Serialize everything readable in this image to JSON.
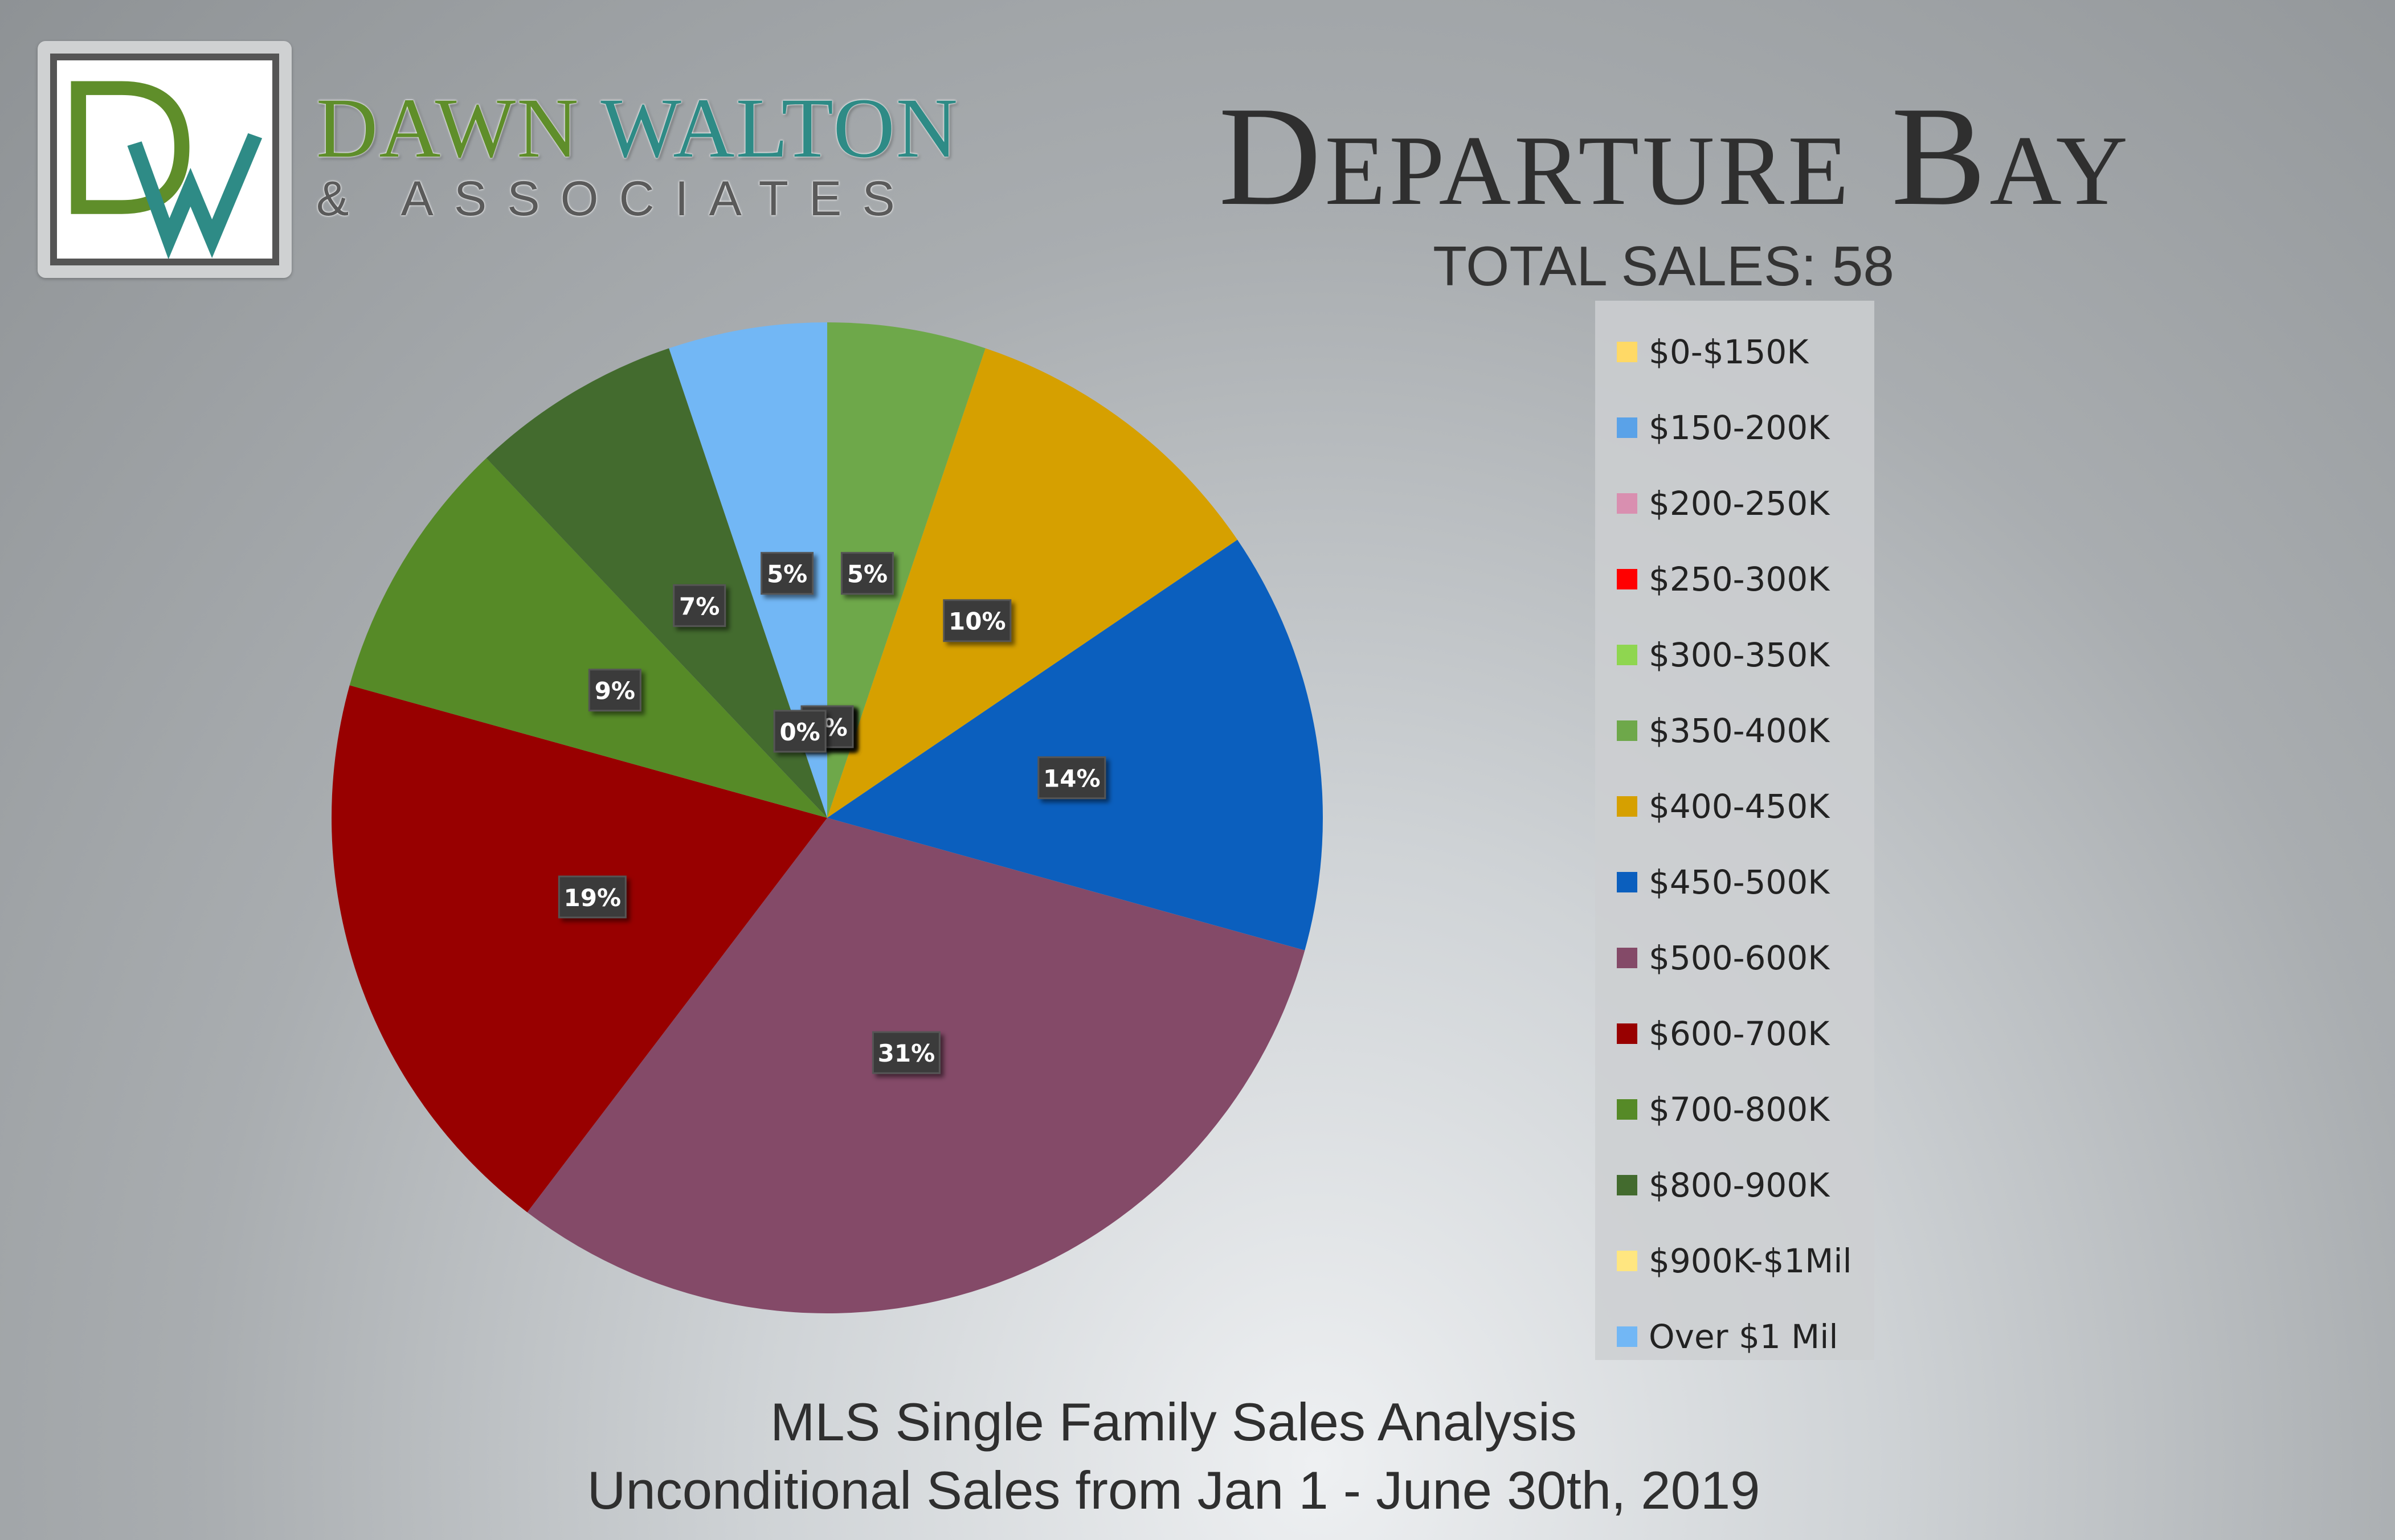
{
  "logo": {
    "monogram": "DW",
    "name_part1": "DAWN",
    "name_part2": "WALTON",
    "tagline": "& ASSOCIATES"
  },
  "header": {
    "title": "Departure Bay",
    "total_sales": "TOTAL SALES: 58"
  },
  "footer": {
    "line1": "MLS Single Family Sales Analysis",
    "line2": "Unconditional Sales from Jan 1 - June 30th, 2019"
  },
  "chart_data": {
    "type": "pie",
    "title": "Departure Bay",
    "subtitle": "TOTAL SALES: 58",
    "start_angle_deg": 0,
    "direction": "clockwise",
    "legend_position": "right",
    "categories": [
      "$0-$150K",
      "$150-200K",
      "$200-250K",
      "$250-300K",
      "$300-350K",
      "$350-400K",
      "$400-450K",
      "$450-500K",
      "$500-600K",
      "$600-700K",
      "$700-800K",
      "$800-900K",
      "$900K-$1Mil",
      "Over $1 Mil"
    ],
    "values": [
      0,
      0,
      0,
      0,
      0,
      3,
      6,
      8,
      18,
      11,
      5,
      4,
      0,
      3
    ],
    "labels": [
      "0%",
      "0%",
      "0%",
      "0%",
      "0%",
      "5%",
      "10%",
      "14%",
      "31%",
      "19%",
      "9%",
      "7%",
      "0%",
      "5%"
    ],
    "colors": [
      "#ffd966",
      "#5aa2e8",
      "#d98fb0",
      "#ff0000",
      "#8fd650",
      "#6ea84a",
      "#d6a000",
      "#0b5fbe",
      "#844a68",
      "#980000",
      "#568a27",
      "#436b2e",
      "#ffe680",
      "#72b7f5"
    ]
  }
}
